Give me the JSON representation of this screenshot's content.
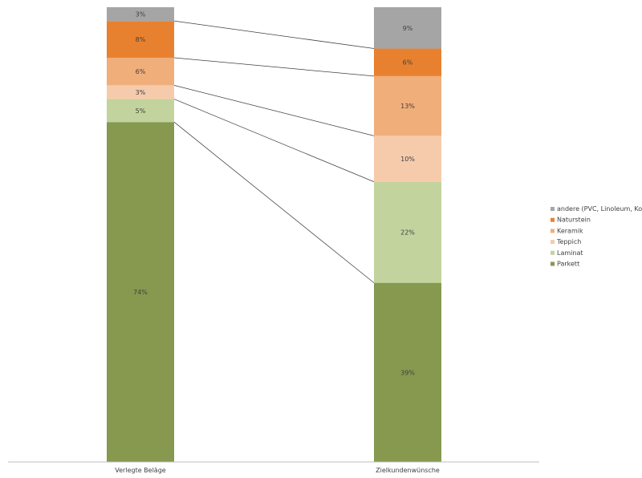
{
  "chart_data": {
    "type": "bar",
    "stacked": true,
    "percent_stacked": true,
    "series_lines": true,
    "categories": [
      "Verlegte Beläge",
      "Zielkundenwünsche"
    ],
    "series": [
      {
        "name": "Parkett",
        "values": [
          74,
          39
        ],
        "labels": [
          "74%",
          "39%"
        ],
        "color": "#86994f"
      },
      {
        "name": "Laminat",
        "values": [
          5,
          22
        ],
        "labels": [
          "5%",
          "22%"
        ],
        "color": "#c3d39e"
      },
      {
        "name": "Teppich",
        "values": [
          3,
          10
        ],
        "labels": [
          "3%",
          "10%"
        ],
        "color": "#f6cbac"
      },
      {
        "name": "Keramik",
        "values": [
          6,
          13
        ],
        "labels": [
          "6%",
          "13%"
        ],
        "color": "#f0ae7a"
      },
      {
        "name": "Naturstein",
        "values": [
          8,
          6
        ],
        "labels": [
          "8%",
          "6%"
        ],
        "color": "#e8812f"
      },
      {
        "name": "andere (PVC, Linoleum, Kork)",
        "values": [
          3,
          9
        ],
        "labels": [
          "3%",
          "9%"
        ],
        "color": "#a5a5a5"
      }
    ],
    "legend_position": "right",
    "legend_order": [
      5,
      4,
      3,
      2,
      1,
      0
    ],
    "grid": false,
    "title": "",
    "xlabel": "",
    "ylabel": ""
  }
}
